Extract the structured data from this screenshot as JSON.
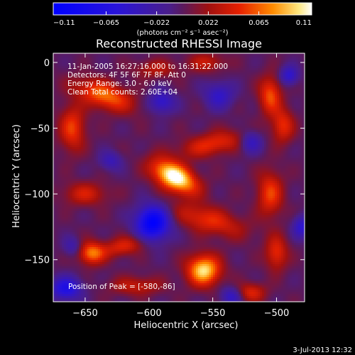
{
  "chart_data": {
    "type": "heatmap",
    "title": "Reconstructed RHESSI Image",
    "xlabel": "Heliocentric X (arcsec)",
    "ylabel": "Heliocentric Y (arcsec)",
    "xlim": [
      -675,
      -478
    ],
    "ylim": [
      -182,
      7
    ],
    "x_ticks": [
      -650,
      -600,
      -550,
      -500
    ],
    "x_tick_labels": [
      "−650",
      "−600",
      "−550",
      "−500"
    ],
    "y_ticks": [
      0,
      -50,
      -100,
      -150
    ],
    "y_tick_labels": [
      "0",
      "−50",
      "−100",
      "−150"
    ],
    "colorbar": {
      "range": [
        -0.11,
        0.11
      ],
      "ticks": [
        -0.11,
        -0.065,
        -0.022,
        0.022,
        0.065,
        0.11
      ],
      "tick_labels": [
        "−0.11",
        "−0.065",
        "−0.022",
        "0.022",
        "0.065",
        "0.11"
      ],
      "unit_label": "(photons cm⁻² s⁻¹ asec⁻²)"
    },
    "annotations": [
      "11-Jan-2005 16:27:16.000 to 16:31:22.000",
      "Detectors: 4F 5F 6F 7F 8F, Att 0",
      "Energy Range: 3.0 - 6.0 keV",
      "Clean     Total counts: 2.60E+04"
    ],
    "peak_label": "Position of Peak = [-580,-86]",
    "peak": {
      "x": -580,
      "y": -86
    },
    "sources": [
      {
        "x": -580,
        "y": -87,
        "sx": 13,
        "sy": 7,
        "amp": 0.12,
        "rot": -28
      },
      {
        "x": -557,
        "y": -158,
        "sx": 9,
        "sy": 8,
        "amp": 0.1,
        "rot": 0
      },
      {
        "x": -635,
        "y": -25,
        "sx": 16,
        "sy": 7,
        "amp": 0.07,
        "rot": -18
      },
      {
        "x": -660,
        "y": -50,
        "sx": 7,
        "sy": 12,
        "amp": 0.055,
        "rot": 0
      },
      {
        "x": -650,
        "y": -100,
        "sx": 12,
        "sy": 6,
        "amp": 0.04,
        "rot": 0
      },
      {
        "x": -645,
        "y": -145,
        "sx": 7,
        "sy": 6,
        "amp": 0.07,
        "rot": 0
      },
      {
        "x": -620,
        "y": -140,
        "sx": 12,
        "sy": 5,
        "amp": 0.045,
        "rot": 12
      },
      {
        "x": -550,
        "y": -62,
        "sx": 18,
        "sy": 6,
        "amp": 0.05,
        "rot": 12
      },
      {
        "x": -553,
        "y": -120,
        "sx": 20,
        "sy": 7,
        "amp": 0.05,
        "rot": -15
      },
      {
        "x": -505,
        "y": -25,
        "sx": 6,
        "sy": 10,
        "amp": 0.06,
        "rot": 0
      },
      {
        "x": -495,
        "y": -48,
        "sx": 6,
        "sy": 9,
        "amp": 0.05,
        "rot": 0
      },
      {
        "x": -505,
        "y": -100,
        "sx": 7,
        "sy": 12,
        "amp": 0.055,
        "rot": 0
      },
      {
        "x": -500,
        "y": -145,
        "sx": 6,
        "sy": 9,
        "amp": 0.05,
        "rot": 0
      },
      {
        "x": -520,
        "y": -175,
        "sx": 8,
        "sy": 5,
        "amp": 0.045,
        "rot": 0
      },
      {
        "x": -610,
        "y": -170,
        "sx": 14,
        "sy": 5,
        "amp": 0.035,
        "rot": 0
      },
      {
        "x": -595,
        "y": -5,
        "sx": 12,
        "sy": 5,
        "amp": 0.03,
        "rot": 0
      },
      {
        "x": -555,
        "y": 0,
        "sx": 10,
        "sy": 5,
        "amp": 0.035,
        "rot": 0
      },
      {
        "x": -597,
        "y": -122,
        "sx": 9,
        "sy": 9,
        "amp": -0.11,
        "rot": 0
      },
      {
        "x": -590,
        "y": -30,
        "sx": 7,
        "sy": 6,
        "amp": -0.05,
        "rot": 0
      },
      {
        "x": -545,
        "y": -25,
        "sx": 8,
        "sy": 7,
        "amp": -0.045,
        "rot": 0
      },
      {
        "x": -665,
        "y": -172,
        "sx": 8,
        "sy": 6,
        "amp": -0.07,
        "rot": 0
      },
      {
        "x": -520,
        "y": -60,
        "sx": 6,
        "sy": 6,
        "amp": -0.045,
        "rot": 0
      },
      {
        "x": -490,
        "y": -10,
        "sx": 5,
        "sy": 5,
        "amp": -0.05,
        "rot": 0
      },
      {
        "x": -480,
        "y": -125,
        "sx": 5,
        "sy": 6,
        "amp": -0.05,
        "rot": 0
      },
      {
        "x": -535,
        "y": -178,
        "sx": 6,
        "sy": 5,
        "amp": -0.045,
        "rot": 0
      },
      {
        "x": -630,
        "y": -75,
        "sx": 6,
        "sy": 5,
        "amp": -0.035,
        "rot": 0
      },
      {
        "x": -660,
        "y": -140,
        "sx": 5,
        "sy": 5,
        "amp": -0.03,
        "rot": 0
      }
    ]
  },
  "footer": {
    "timestamp": "3-Jul-2013 12:32"
  }
}
